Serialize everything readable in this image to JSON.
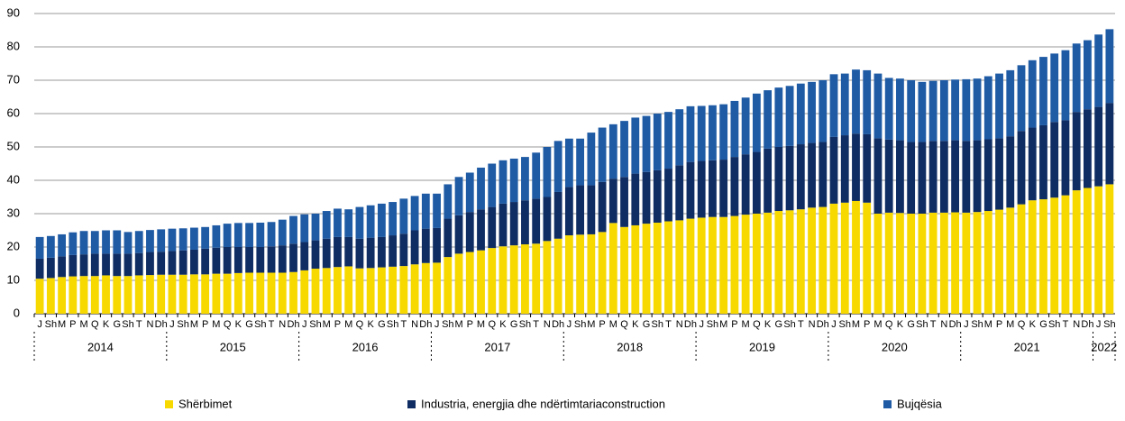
{
  "chart_data": {
    "type": "stacked_bar",
    "groups": [
      {
        "label": "2014",
        "categories": [
          "J",
          "Sh",
          "M",
          "P",
          "M",
          "Q",
          "K",
          "G",
          "Sh",
          "T",
          "N",
          "Dh"
        ]
      },
      {
        "label": "2015",
        "categories": [
          "J",
          "Sh",
          "M",
          "P",
          "M",
          "Q",
          "K",
          "G",
          "Sh",
          "T",
          "N",
          "Dh"
        ]
      },
      {
        "label": "2016",
        "categories": [
          "J",
          "Sh",
          "M",
          "P",
          "M",
          "Q",
          "K",
          "G",
          "Sh",
          "T",
          "N",
          "Dh"
        ]
      },
      {
        "label": "2017",
        "categories": [
          "J",
          "Sh",
          "M",
          "P",
          "M",
          "Q",
          "K",
          "G",
          "Sh",
          "T",
          "N",
          "Dh"
        ]
      },
      {
        "label": "2018",
        "categories": [
          "J",
          "Sh",
          "M",
          "P",
          "M",
          "Q",
          "K",
          "G",
          "Sh",
          "T",
          "N",
          "Dh"
        ]
      },
      {
        "label": "2019",
        "categories": [
          "J",
          "Sh",
          "M",
          "P",
          "M",
          "Q",
          "K",
          "G",
          "Sh",
          "T",
          "N",
          "Dh"
        ]
      },
      {
        "label": "2020",
        "categories": [
          "J",
          "Sh",
          "M",
          "P",
          "M",
          "Q",
          "K",
          "G",
          "Sh",
          "T",
          "N",
          "Dh"
        ]
      },
      {
        "label": "2021",
        "categories": [
          "J",
          "Sh",
          "M",
          "P",
          "M",
          "Q",
          "K",
          "G",
          "Sh",
          "T",
          "N",
          "Dh"
        ]
      },
      {
        "label": "2022",
        "categories": [
          "J",
          "Sh"
        ]
      }
    ],
    "series": [
      {
        "name": "Shërbimet",
        "color": "#f7d900",
        "values": [
          10.5,
          10.7,
          11,
          11.2,
          11.3,
          11.3,
          11.5,
          11.3,
          11.3,
          11.5,
          11.6,
          11.7,
          11.7,
          11.7,
          11.8,
          11.8,
          12,
          12,
          12.2,
          12.3,
          12.3,
          12.3,
          12.3,
          12.5,
          13,
          13.5,
          13.7,
          14,
          14.2,
          13.6,
          13.7,
          13.9,
          14.1,
          14.3,
          14.8,
          15.2,
          15.3,
          17,
          18,
          18.5,
          19,
          19.7,
          20.2,
          20.5,
          20.8,
          21,
          21.8,
          22.5,
          23.5,
          23.7,
          23.8,
          24.5,
          27.2,
          26,
          26.5,
          27,
          27.3,
          27.7,
          28,
          28.5,
          28.8,
          29,
          29,
          29.3,
          29.7,
          30,
          30.3,
          30.8,
          31,
          31.3,
          31.8,
          32,
          33,
          33.3,
          33.8,
          33.3,
          30,
          30.3,
          30.2,
          30,
          30,
          30.3,
          30.3,
          30.4,
          30.3,
          30.5,
          30.8,
          31.2,
          31.8,
          32.8,
          34,
          34.3,
          34.8,
          35.5,
          37,
          37.7,
          38.2,
          38.8
        ]
      },
      {
        "name": "Industria, energjia dhe ndërtimtariaconstruction",
        "color": "#0f2d63",
        "values": [
          6.0,
          6.1,
          6.2,
          6.4,
          6.5,
          6.7,
          6.5,
          6.7,
          6.7,
          6.7,
          6.9,
          6.9,
          7.1,
          7.3,
          7.4,
          7.7,
          7.8,
          8.0,
          7.8,
          7.7,
          7.7,
          7.9,
          8.2,
          8.5,
          8.5,
          8.5,
          8.8,
          9.0,
          8.8,
          8.9,
          9.1,
          9.1,
          9.4,
          9.7,
          10.2,
          10.3,
          10.4,
          11.5,
          11.5,
          12.0,
          12.3,
          12.3,
          12.8,
          13.0,
          13.2,
          13.5,
          13.2,
          14.0,
          14.5,
          14.8,
          14.7,
          15.0,
          13.3,
          15.0,
          15.5,
          15.5,
          15.7,
          15.8,
          16.5,
          17.0,
          17.0,
          17.0,
          17.2,
          17.7,
          18.1,
          18.5,
          19.2,
          19.2,
          19.3,
          19.5,
          19.4,
          19.5,
          20.0,
          20.2,
          20.2,
          20.5,
          22.6,
          21.9,
          21.8,
          21.5,
          21.5,
          21.5,
          21.5,
          21.6,
          21.5,
          21.5,
          21.5,
          21.4,
          21.4,
          22.0,
          21.8,
          22.2,
          22.7,
          22.5,
          23.5,
          23.6,
          23.8,
          24.4
        ]
      },
      {
        "name": "Bujqësia",
        "color": "#1f5ba5",
        "values": [
          6.5,
          6.5,
          6.6,
          6.8,
          7.0,
          6.8,
          7.0,
          7.0,
          6.5,
          6.6,
          6.6,
          6.7,
          6.7,
          6.6,
          6.6,
          6.5,
          6.7,
          7.0,
          7.2,
          7.2,
          7.3,
          7.3,
          7.7,
          8.3,
          8.3,
          8.0,
          8.3,
          8.5,
          8.3,
          9.5,
          9.7,
          10.0,
          10.0,
          10.5,
          10.3,
          10.5,
          10.3,
          10.3,
          11.5,
          11.8,
          12.5,
          13.0,
          13.0,
          13.0,
          13.0,
          13.8,
          15.0,
          15.3,
          14.5,
          14.0,
          15.8,
          16.3,
          16.3,
          16.8,
          16.8,
          16.8,
          17.0,
          17.0,
          16.8,
          16.7,
          16.5,
          16.5,
          16.6,
          16.8,
          17.0,
          17.5,
          17.5,
          17.8,
          18.0,
          18.2,
          18.3,
          18.5,
          18.8,
          18.5,
          19.2,
          19.2,
          19.4,
          18.5,
          18.5,
          18.5,
          18.0,
          18.0,
          18.2,
          18.2,
          18.5,
          18.5,
          18.9,
          19.4,
          19.8,
          19.7,
          20.2,
          20.5,
          20.5,
          21.0,
          20.5,
          20.7,
          21.7,
          22.1
        ]
      }
    ],
    "ylim": [
      0,
      90
    ],
    "yticks": [
      0,
      10,
      20,
      30,
      40,
      50,
      60,
      70,
      80,
      90
    ],
    "grid": true,
    "legend": "bottom"
  }
}
